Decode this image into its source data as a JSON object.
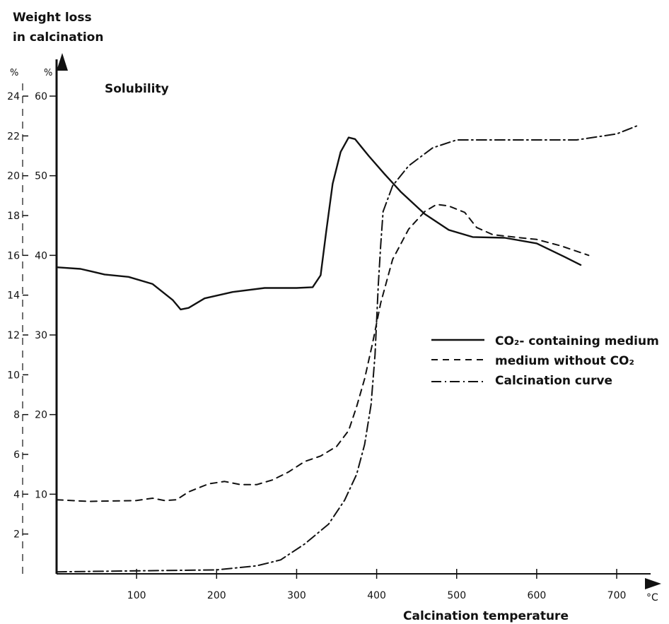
{
  "chart_data": {
    "type": "line",
    "title": "",
    "ylabel_left": "Weight loss in calcination",
    "ylabel_left_line1": "Weight loss",
    "ylabel_left_line2": "in calcination",
    "ylabel_right": "Solubility",
    "xlabel": "Calcination temperature",
    "x_unit": "°C",
    "left_axis_unit": "%",
    "right_axis_unit": "%",
    "xlim": [
      0,
      720
    ],
    "weight_loss_lim": [
      0,
      24
    ],
    "solubility_lim": [
      0,
      60
    ],
    "x_ticks": [
      "100",
      "200",
      "300",
      "400",
      "500",
      "600",
      "700"
    ],
    "weight_loss_ticks": [
      "2",
      "4",
      "6",
      "8",
      "10",
      "12",
      "14",
      "16",
      "18",
      "20",
      "22",
      "24"
    ],
    "solubility_ticks": [
      "10",
      "20",
      "30",
      "40",
      "50",
      "60"
    ],
    "legend_position": "right-middle",
    "series": [
      {
        "name": "CO2- containing medium",
        "legend_label": "CO₂- containing medium",
        "axis": "solubility",
        "style": "solid",
        "points": [
          [
            0,
            38.5
          ],
          [
            30,
            38.3
          ],
          [
            60,
            37.6
          ],
          [
            90,
            37.3
          ],
          [
            120,
            36.4
          ],
          [
            145,
            34.4
          ],
          [
            155,
            33.2
          ],
          [
            165,
            33.4
          ],
          [
            185,
            34.6
          ],
          [
            220,
            35.4
          ],
          [
            260,
            35.9
          ],
          [
            300,
            35.9
          ],
          [
            320,
            36.0
          ],
          [
            330,
            37.5
          ],
          [
            337,
            43.0
          ],
          [
            345,
            49.0
          ],
          [
            355,
            53.0
          ],
          [
            365,
            54.8
          ],
          [
            373,
            54.6
          ],
          [
            390,
            52.5
          ],
          [
            410,
            50.2
          ],
          [
            430,
            48.0
          ],
          [
            460,
            45.2
          ],
          [
            490,
            43.2
          ],
          [
            520,
            42.3
          ],
          [
            560,
            42.2
          ],
          [
            600,
            41.5
          ],
          [
            635,
            39.8
          ],
          [
            655,
            38.8
          ]
        ]
      },
      {
        "name": "medium without CO2",
        "legend_label": "medium without CO₂",
        "axis": "solubility",
        "style": "dashed",
        "points": [
          [
            0,
            9.3
          ],
          [
            40,
            9.1
          ],
          [
            100,
            9.2
          ],
          [
            120,
            9.5
          ],
          [
            135,
            9.2
          ],
          [
            150,
            9.3
          ],
          [
            165,
            10.3
          ],
          [
            190,
            11.3
          ],
          [
            210,
            11.6
          ],
          [
            230,
            11.2
          ],
          [
            250,
            11.2
          ],
          [
            270,
            11.8
          ],
          [
            290,
            12.8
          ],
          [
            310,
            14.1
          ],
          [
            330,
            14.8
          ],
          [
            350,
            16.0
          ],
          [
            365,
            18.0
          ],
          [
            375,
            21.0
          ],
          [
            385,
            24.5
          ],
          [
            395,
            29.0
          ],
          [
            405,
            34.0
          ],
          [
            420,
            39.5
          ],
          [
            440,
            43.3
          ],
          [
            460,
            45.5
          ],
          [
            475,
            46.4
          ],
          [
            490,
            46.2
          ],
          [
            510,
            45.4
          ],
          [
            525,
            43.5
          ],
          [
            545,
            42.6
          ],
          [
            580,
            42.2
          ],
          [
            600,
            42.0
          ],
          [
            630,
            41.2
          ],
          [
            665,
            40.0
          ]
        ]
      },
      {
        "name": "Calcination curve",
        "legend_label": "Calcination curve",
        "axis": "weight_loss",
        "style": "dashdot",
        "points": [
          [
            0,
            0.1
          ],
          [
            100,
            0.15
          ],
          [
            200,
            0.2
          ],
          [
            250,
            0.4
          ],
          [
            280,
            0.7
          ],
          [
            310,
            1.5
          ],
          [
            340,
            2.5
          ],
          [
            360,
            3.7
          ],
          [
            375,
            5.0
          ],
          [
            385,
            6.5
          ],
          [
            393,
            8.5
          ],
          [
            398,
            11.0
          ],
          [
            402,
            14.5
          ],
          [
            405,
            16.5
          ],
          [
            408,
            18.2
          ],
          [
            420,
            19.5
          ],
          [
            440,
            20.5
          ],
          [
            470,
            21.4
          ],
          [
            500,
            21.8
          ],
          [
            560,
            21.8
          ],
          [
            650,
            21.8
          ],
          [
            700,
            22.1
          ],
          [
            725,
            22.5
          ]
        ]
      }
    ]
  }
}
